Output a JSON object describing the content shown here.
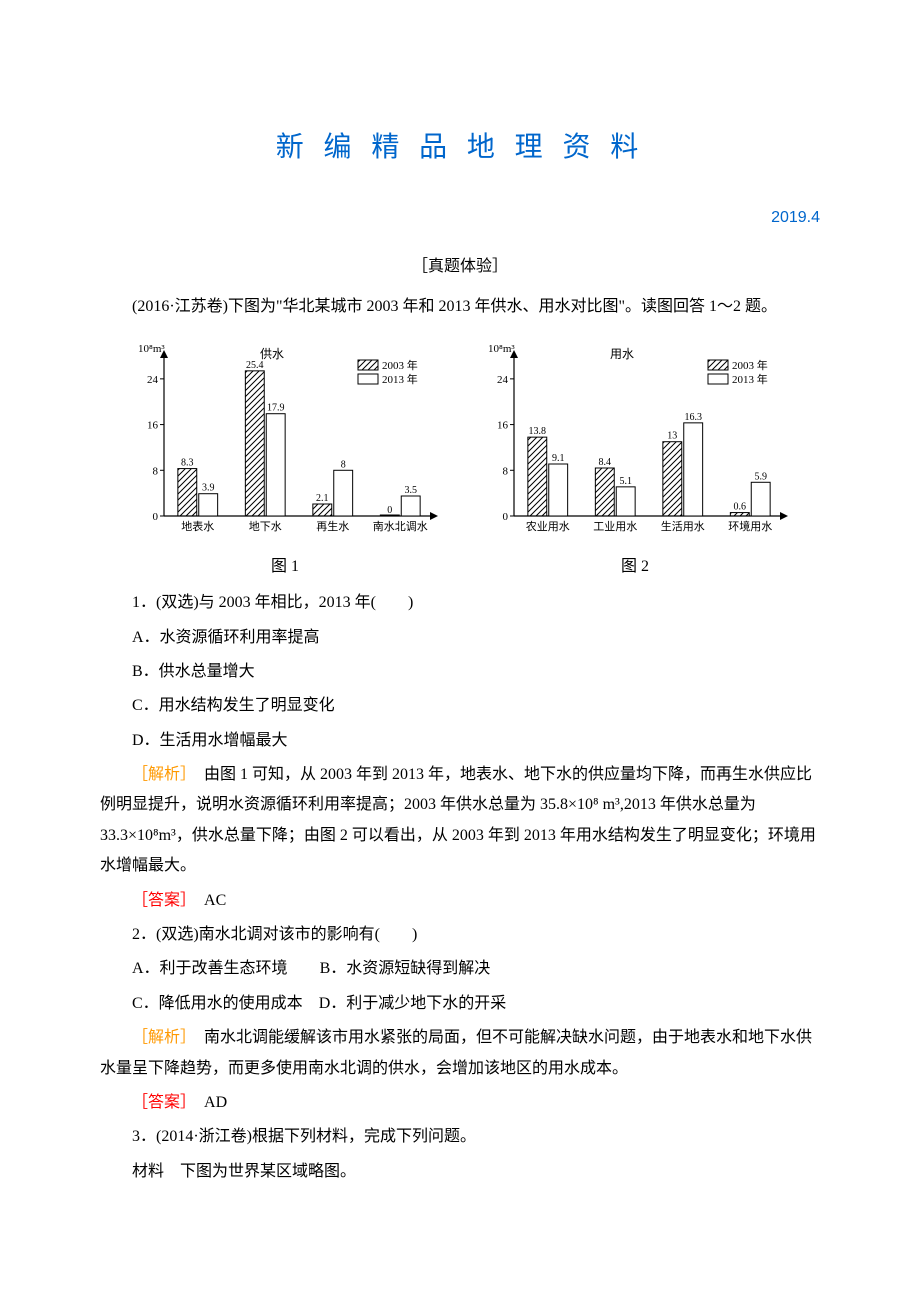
{
  "header": {
    "title": "新 编 精 品 地 理 资 料",
    "date": "2019.4"
  },
  "section_header": "［真题体验］",
  "intro": "(2016·江苏卷)下图为\"华北某城市 2003 年和 2013 年供水、用水对比图\"。读图回答 1～2 题。",
  "chart1": {
    "type": "bar",
    "caption": "图 1",
    "y_unit": "10⁸m³",
    "title": "供水",
    "legend": [
      "2003 年",
      "2013 年"
    ],
    "legend_colors": {
      "2003": "hatch",
      "2013": "#ffffff"
    },
    "categories": [
      "地表水",
      "地下水",
      "再生水",
      "南水北调水"
    ],
    "series_2003": [
      8.3,
      25.4,
      2.1,
      0
    ],
    "series_2013": [
      3.9,
      17.9,
      8.0,
      3.5
    ],
    "ylim": [
      0,
      28
    ],
    "yticks": [
      0,
      8,
      16,
      24
    ],
    "axis_color": "#000000",
    "bar_border": "#000000",
    "hatch_color": "#000000",
    "background": "#ffffff",
    "font_size_axis": 11,
    "font_size_value": 10
  },
  "chart2": {
    "type": "bar",
    "caption": "图 2",
    "y_unit": "10⁸m³",
    "title": "用水",
    "legend": [
      "2003 年",
      "2013 年"
    ],
    "categories": [
      "农业用水",
      "工业用水",
      "生活用水",
      "环境用水"
    ],
    "series_2003": [
      13.8,
      8.4,
      13.0,
      0.6
    ],
    "series_2013": [
      9.1,
      5.1,
      16.3,
      5.9
    ],
    "ylim": [
      0,
      28
    ],
    "yticks": [
      0,
      8,
      16,
      24
    ],
    "axis_color": "#000000",
    "bar_border": "#000000",
    "hatch_color": "#000000",
    "background": "#ffffff",
    "font_size_axis": 11,
    "font_size_value": 10
  },
  "q1": {
    "stem": "1．(双选)与 2003 年相比，2013 年(　　)",
    "A": "A．水资源循环利用率提高",
    "B": "B．供水总量增大",
    "C": "C．用水结构发生了明显变化",
    "D": "D．生活用水增幅最大",
    "analysis_label": "［解析］",
    "analysis": "　由图 1 可知，从 2003 年到 2013 年，地表水、地下水的供应量均下降，而再生水供应比例明显提升，说明水资源循环利用率提高；2003 年供水总量为 35.8×10⁸ m³,2013 年供水总量为 33.3×10⁸m³，供水总量下降；由图 2 可以看出，从 2003 年到 2013 年用水结构发生了明显变化；环境用水增幅最大。",
    "answer_label": "［答案］",
    "answer": "　AC"
  },
  "q2": {
    "stem": "2．(双选)南水北调对该市的影响有(　　)",
    "A": "A．利于改善生态环境",
    "B_label": "B．水资源短缺得到解决",
    "C": "C．降低用水的使用成本",
    "D_label": "D．利于减少地下水的开采",
    "analysis_label": "［解析］",
    "analysis": "　南水北调能缓解该市用水紧张的局面，但不可能解决缺水问题，由于地表水和地下水供水量呈下降趋势，而更多使用南水北调的供水，会增加该地区的用水成本。",
    "answer_label": "［答案］",
    "answer": "　AD"
  },
  "q3": {
    "stem": "3．(2014·浙江卷)根据下列材料，完成下列问题。",
    "material": "材料　下图为世界某区域略图。"
  }
}
